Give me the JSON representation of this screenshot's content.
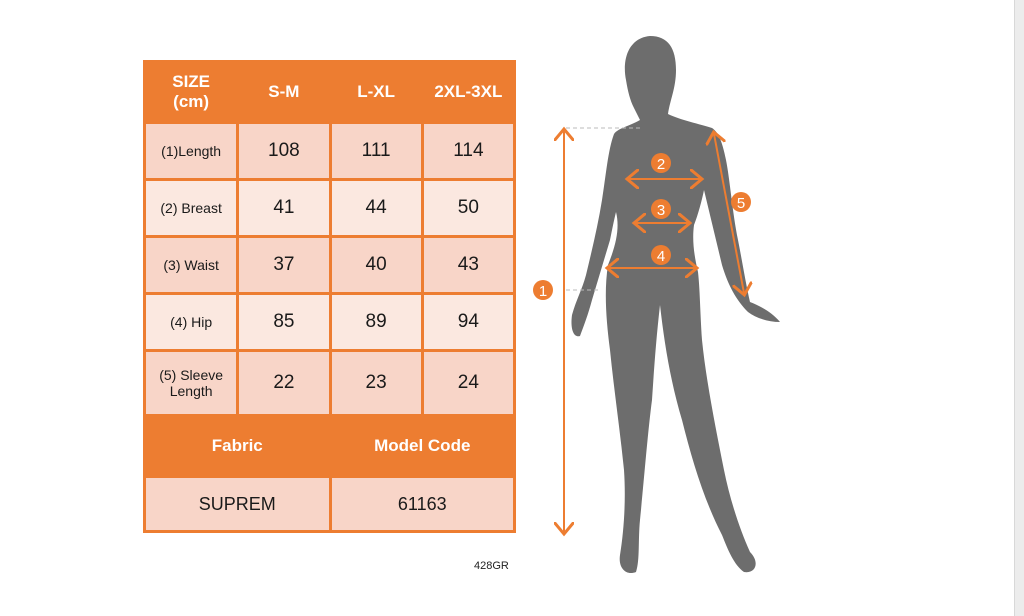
{
  "table": {
    "header": [
      "SIZE (cm)",
      "S-M",
      "L-XL",
      "2XL-3XL"
    ],
    "header_size_line1": "SIZE",
    "header_size_line2": "(cm)",
    "rows": [
      {
        "label": "(1)Length",
        "values": [
          "108",
          "111",
          "114"
        ]
      },
      {
        "label": "(2) Breast",
        "values": [
          "41",
          "44",
          "50"
        ]
      },
      {
        "label": "(3) Waist",
        "values": [
          "37",
          "40",
          "43"
        ]
      },
      {
        "label": "(4) Hip",
        "values": [
          "85",
          "89",
          "94"
        ]
      },
      {
        "label": "(5) Sleeve Length",
        "label_line1": "(5) Sleeve",
        "label_line2": "Length",
        "values": [
          "22",
          "23",
          "24"
        ]
      }
    ],
    "footer_headers": [
      "Fabric",
      "Model Code"
    ],
    "footer_values": [
      "SUPREM",
      "61163"
    ]
  },
  "product_code": "428GR",
  "diagram": {
    "markers": [
      "1",
      "2",
      "3",
      "4",
      "5"
    ]
  },
  "colors": {
    "accent": "#ed7d31",
    "row_dark": "#f8d5c8",
    "row_light": "#fbe8e0",
    "silhouette": "#6d6d6d"
  }
}
